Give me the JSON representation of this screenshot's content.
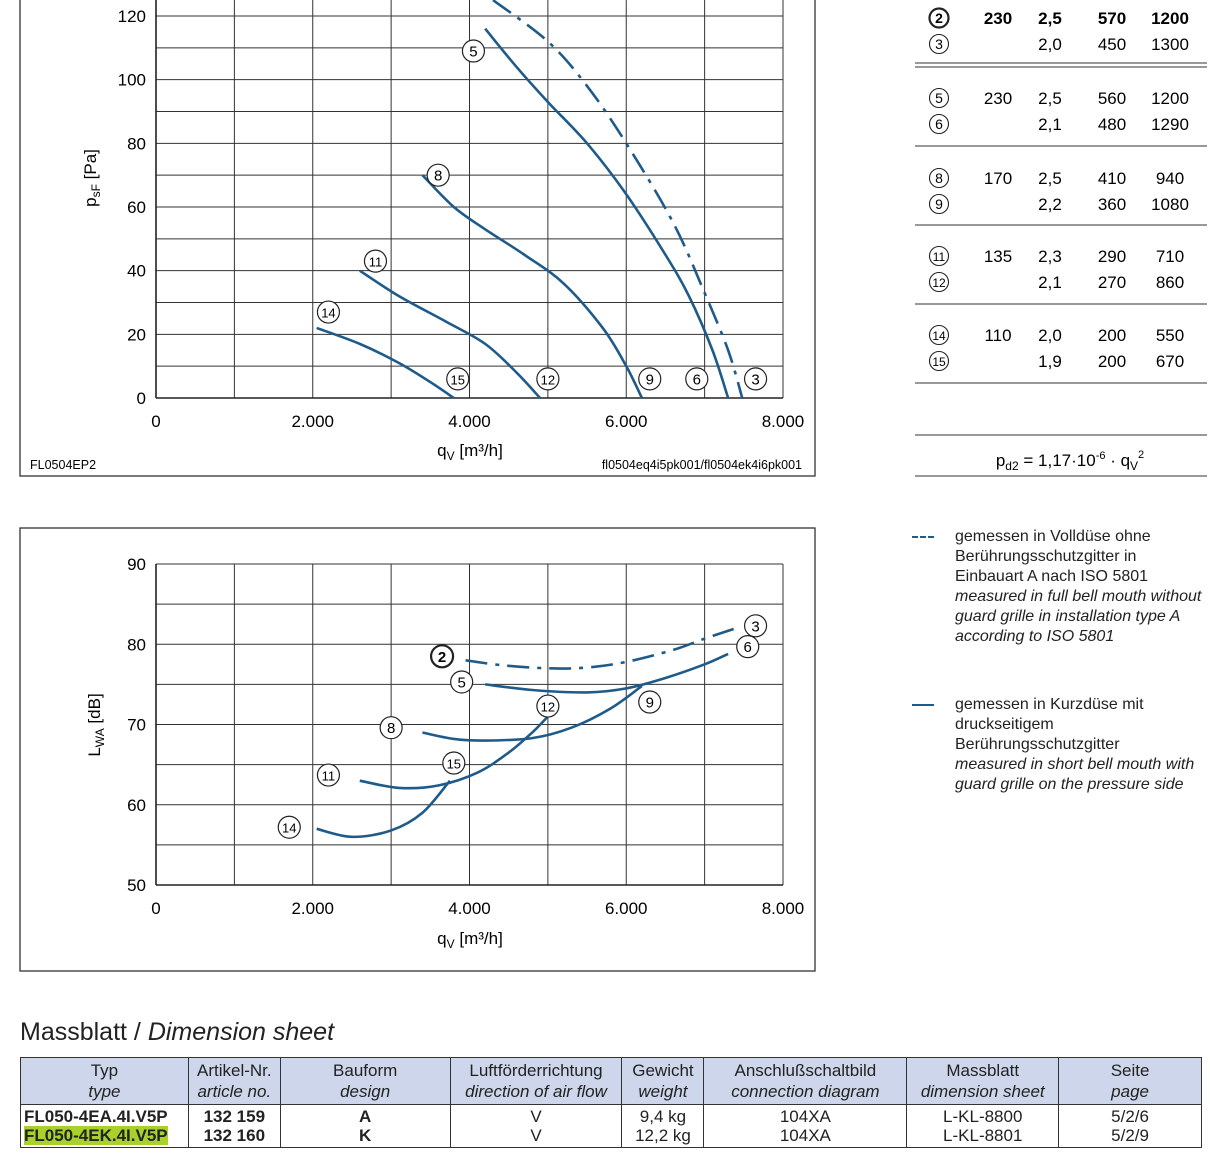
{
  "chart_data": [
    {
      "type": "line",
      "title": "",
      "xlabel": "qV [m³/h]",
      "ylabel": "psF [Pa]",
      "xlim": [
        0,
        8000
      ],
      "ylim": [
        0,
        120
      ],
      "xticks": [
        0,
        2000,
        4000,
        6000,
        8000
      ],
      "xtick_labels": [
        "0",
        "2.000",
        "4.000",
        "6.000",
        "8.000"
      ],
      "yticks": [
        0,
        20,
        40,
        60,
        80,
        100,
        120
      ],
      "ytick_labels": [
        "0",
        "20",
        "40",
        "60",
        "80",
        "100",
        "120"
      ],
      "grid": true,
      "footer_left": "FL0504EP2",
      "footer_right": "fl0504eq4i5pk001/fl0504ek4i6pk001",
      "series": [
        {
          "name": "3",
          "style": "dashed",
          "points": [
            [
              4300,
              125
            ],
            [
              5000,
              112
            ],
            [
              5500,
              98
            ],
            [
              6000,
              80
            ],
            [
              6600,
              55
            ],
            [
              7000,
              33
            ],
            [
              7300,
              15
            ],
            [
              7480,
              0
            ]
          ]
        },
        {
          "name": "5",
          "style": "solid",
          "points": [
            [
              4200,
              116
            ],
            [
              4600,
              104
            ],
            [
              5000,
              93
            ],
            [
              5500,
              80
            ],
            [
              6000,
              64
            ],
            [
              6500,
              45
            ],
            [
              6800,
              32
            ],
            [
              7100,
              15
            ],
            [
              7300,
              0
            ]
          ]
        },
        {
          "name": "8",
          "style": "solid",
          "points": [
            [
              3400,
              70
            ],
            [
              3800,
              60
            ],
            [
              4200,
              53
            ],
            [
              4700,
              45
            ],
            [
              5200,
              36
            ],
            [
              5700,
              22
            ],
            [
              6000,
              10
            ],
            [
              6200,
              0
            ]
          ]
        },
        {
          "name": "11",
          "style": "solid",
          "points": [
            [
              2600,
              40
            ],
            [
              3100,
              32
            ],
            [
              3700,
              24
            ],
            [
              4200,
              17
            ],
            [
              4600,
              8
            ],
            [
              4900,
              0
            ]
          ]
        },
        {
          "name": "14",
          "style": "solid",
          "points": [
            [
              2050,
              22
            ],
            [
              2600,
              17
            ],
            [
              3100,
              11
            ],
            [
              3500,
              5
            ],
            [
              3800,
              0
            ]
          ]
        }
      ],
      "markers": [
        {
          "label": "5",
          "x": 4050,
          "y": 109
        },
        {
          "label": "8",
          "x": 3600,
          "y": 70
        },
        {
          "label": "11",
          "x": 2800,
          "y": 43
        },
        {
          "label": "14",
          "x": 2200,
          "y": 27
        },
        {
          "label": "15",
          "x": 3850,
          "y": 6
        },
        {
          "label": "12",
          "x": 5000,
          "y": 6
        },
        {
          "label": "9",
          "x": 6300,
          "y": 6
        },
        {
          "label": "6",
          "x": 6900,
          "y": 6
        },
        {
          "label": "3",
          "x": 7650,
          "y": 6
        }
      ]
    },
    {
      "type": "line",
      "title": "",
      "xlabel": "qV [m³/h]",
      "ylabel": "LWA [dB]",
      "xlim": [
        0,
        8000
      ],
      "ylim": [
        50,
        90
      ],
      "xticks": [
        0,
        2000,
        4000,
        6000,
        8000
      ],
      "xtick_labels": [
        "0",
        "2.000",
        "4.000",
        "6.000",
        "8.000"
      ],
      "yticks": [
        50,
        60,
        70,
        80,
        90
      ],
      "ytick_labels": [
        "50",
        "60",
        "70",
        "80",
        "90"
      ],
      "grid": true,
      "series": [
        {
          "name": "2-3",
          "style": "dashed",
          "points": [
            [
              3950,
              78
            ],
            [
              4400,
              77.4
            ],
            [
              5000,
              77
            ],
            [
              5500,
              77.1
            ],
            [
              6000,
              77.8
            ],
            [
              6600,
              79.3
            ],
            [
              7000,
              80.7
            ],
            [
              7400,
              82
            ]
          ]
        },
        {
          "name": "5-6",
          "style": "solid",
          "points": [
            [
              4200,
              75
            ],
            [
              4800,
              74.3
            ],
            [
              5500,
              74
            ],
            [
              6000,
              74.5
            ],
            [
              6500,
              75.8
            ],
            [
              7000,
              77.5
            ],
            [
              7300,
              78.8
            ]
          ]
        },
        {
          "name": "8-9",
          "style": "solid",
          "points": [
            [
              3400,
              69
            ],
            [
              3800,
              68.2
            ],
            [
              4200,
              68
            ],
            [
              4800,
              68.3
            ],
            [
              5300,
              69.6
            ],
            [
              5800,
              72
            ],
            [
              6200,
              74.8
            ]
          ]
        },
        {
          "name": "11-12",
          "style": "solid",
          "points": [
            [
              2600,
              63
            ],
            [
              3100,
              62.1
            ],
            [
              3600,
              62.4
            ],
            [
              4100,
              64
            ],
            [
              4500,
              66.5
            ],
            [
              4800,
              69
            ],
            [
              5000,
              71
            ]
          ]
        },
        {
          "name": "14-15",
          "style": "solid",
          "points": [
            [
              2050,
              57
            ],
            [
              2500,
              56
            ],
            [
              3000,
              56.8
            ],
            [
              3400,
              59
            ],
            [
              3750,
              63
            ]
          ]
        }
      ],
      "markers": [
        {
          "label": "2",
          "x": 3650,
          "y": 78.5,
          "bold": true
        },
        {
          "label": "3",
          "x": 7650,
          "y": 82.3
        },
        {
          "label": "6",
          "x": 7550,
          "y": 79.7
        },
        {
          "label": "5",
          "x": 3900,
          "y": 75.3
        },
        {
          "label": "12",
          "x": 5000,
          "y": 72.3
        },
        {
          "label": "9",
          "x": 6300,
          "y": 72.8
        },
        {
          "label": "8",
          "x": 3000,
          "y": 69.6
        },
        {
          "label": "15",
          "x": 3800,
          "y": 65.2
        },
        {
          "label": "11",
          "x": 2200,
          "y": 63.7
        },
        {
          "label": "14",
          "x": 1700,
          "y": 57.2
        }
      ]
    }
  ],
  "operating_table": {
    "rows": [
      {
        "label": "2",
        "voltage": "230",
        "current": "2,5",
        "power": "570",
        "speed": "1200",
        "bold": true
      },
      {
        "label": "3",
        "voltage": "",
        "current": "2,0",
        "power": "450",
        "speed": "1300",
        "bold": false
      },
      {
        "label": "5",
        "voltage": "230",
        "current": "2,5",
        "power": "560",
        "speed": "1200",
        "bold": false
      },
      {
        "label": "6",
        "voltage": "",
        "current": "2,1",
        "power": "480",
        "speed": "1290",
        "bold": false
      },
      {
        "label": "8",
        "voltage": "170",
        "current": "2,5",
        "power": "410",
        "speed": "940",
        "bold": false
      },
      {
        "label": "9",
        "voltage": "",
        "current": "2,2",
        "power": "360",
        "speed": "1080",
        "bold": false
      },
      {
        "label": "11",
        "voltage": "135",
        "current": "2,3",
        "power": "290",
        "speed": "710",
        "bold": false
      },
      {
        "label": "12",
        "voltage": "",
        "current": "2,1",
        "power": "270",
        "speed": "860",
        "bold": false
      },
      {
        "label": "14",
        "voltage": "110",
        "current": "2,0",
        "power": "200",
        "speed": "550",
        "bold": false
      },
      {
        "label": "15",
        "voltage": "",
        "current": "1,9",
        "power": "200",
        "speed": "670",
        "bold": false
      }
    ],
    "formula": "pd2 = 1,17·10-6 · qV2"
  },
  "legend": {
    "dashed_de": "gemessen in Volldüse ohne Berührungsschutzgitter in Einbauart A nach ISO 5801",
    "dashed_en": "measured in full bell mouth without guard grille in installation type A according to ISO 5801",
    "solid_de": "gemessen in Kurzdüse mit druckseitigem Berührungsschutzgitter",
    "solid_en": "measured in short bell mouth with guard grille on the pressure side"
  },
  "dimension_sheet": {
    "heading_de": "Massblatt /",
    "heading_en": "Dimension sheet",
    "headers": [
      {
        "de": "Typ",
        "en": "type"
      },
      {
        "de": "Artikel-Nr.",
        "en": "article no."
      },
      {
        "de": "Bauform",
        "en": "design"
      },
      {
        "de": "Luftförderrichtung",
        "en": "direction of air flow"
      },
      {
        "de": "Gewicht",
        "en": "weight"
      },
      {
        "de": "Anschlußschaltbild",
        "en": "connection diagram"
      },
      {
        "de": "Massblatt",
        "en": "dimension sheet"
      },
      {
        "de": "Seite",
        "en": "page"
      }
    ],
    "rows": [
      {
        "type": "FL050-4EA.4I.V5P",
        "article": "132 159",
        "design": "A",
        "airflow": "V",
        "weight": "9,4 kg",
        "diagram": "104XA",
        "sheet": "L-KL-8800",
        "page": "5/2/6",
        "highlight": false
      },
      {
        "type": "FL050-4EK.4I.V5P",
        "article": "132 160",
        "design": "K",
        "airflow": "V",
        "weight": "12,2 kg",
        "diagram": "104XA",
        "sheet": "L-KL-8801",
        "page": "5/2/9",
        "highlight": true
      }
    ]
  },
  "colors": {
    "curve": "#1f5b8a",
    "grid": "#333333",
    "header_bg": "#cdd6ea",
    "highlight": "#a8d22a"
  }
}
